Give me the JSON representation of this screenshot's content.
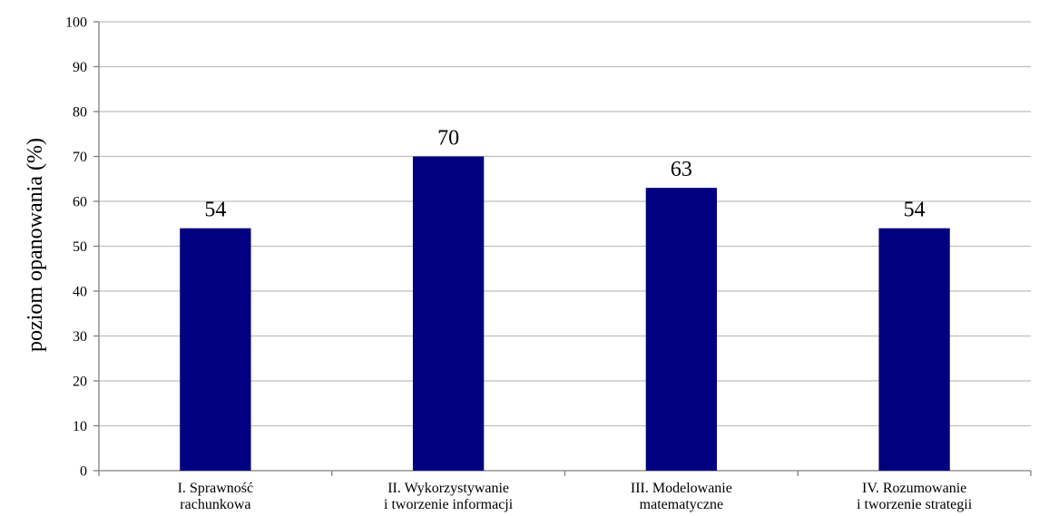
{
  "chart_data": {
    "type": "bar",
    "categories": [
      [
        "I. Sprawność",
        "rachunkowa"
      ],
      [
        "II. Wykorzystywanie",
        "i tworzenie informacji"
      ],
      [
        "III. Modelowanie",
        "matematyczne"
      ],
      [
        "IV. Rozumowanie",
        "i tworzenie strategii"
      ]
    ],
    "values": [
      54,
      70,
      63,
      54
    ],
    "data_labels": [
      "54",
      "70",
      "63",
      "54"
    ],
    "ylabel": "poziom opanowania (%)",
    "ylim": [
      0,
      100
    ],
    "yticks": [
      0,
      10,
      20,
      30,
      40,
      50,
      60,
      70,
      80,
      90,
      100
    ],
    "grid": true,
    "bar_color": "#000080",
    "grid_color": "#bfbfbf"
  }
}
